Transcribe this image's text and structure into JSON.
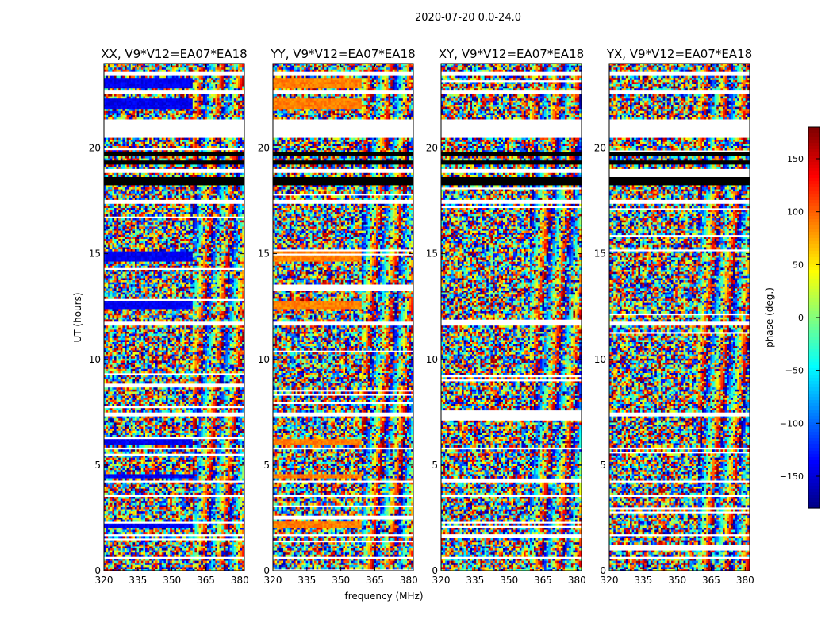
{
  "figure": {
    "suptitle": "2020-07-20 0.0-24.0"
  },
  "chart_data": {
    "type": "heatmap",
    "xlabel": "frequency (MHz)",
    "ylabel": "UT (hours)",
    "xlim": [
      320,
      382
    ],
    "ylim": [
      0,
      24
    ],
    "xticks": [
      320,
      335,
      350,
      365,
      380
    ],
    "yticks": [
      0,
      5,
      10,
      15,
      20
    ],
    "panels": [
      {
        "title": "XX, V9*V12=EA07*EA18",
        "dominant_phase": -140
      },
      {
        "title": "YY, V9*V12=EA07*EA18",
        "dominant_phase": 90
      },
      {
        "title": "XY, V9*V12=EA07*EA18",
        "dominant_phase": null
      },
      {
        "title": "YX, V9*V12=EA07*EA18",
        "dominant_phase": null
      }
    ],
    "coherent_bands_hours": [
      [
        22.8,
        23.3
      ],
      [
        21.9,
        22.3
      ],
      [
        14.6,
        15.1
      ],
      [
        12.4,
        12.8
      ],
      [
        5.9,
        6.2
      ],
      [
        4.4,
        4.6
      ],
      [
        2.0,
        2.3
      ]
    ],
    "blanked_bands_hours": [
      [
        23.4,
        23.6
      ],
      [
        22.5,
        22.7
      ],
      [
        20.5,
        21.4
      ],
      [
        18.8,
        19.0
      ],
      [
        17.4,
        17.6
      ],
      [
        11.6,
        11.8
      ],
      [
        7.3,
        7.5
      ],
      [
        5.7,
        5.8
      ],
      [
        4.2,
        4.3
      ],
      [
        3.5,
        3.6
      ],
      [
        1.6,
        1.7
      ],
      [
        0.6,
        0.7
      ]
    ],
    "flagged_bands_hours": [
      [
        18.2,
        18.6
      ],
      [
        19.2,
        19.4
      ],
      [
        19.6,
        19.8
      ]
    ],
    "colorbar": {
      "label": "phase (deg.)",
      "range": [
        -180,
        180
      ],
      "ticks": [
        -150,
        -100,
        -50,
        0,
        50,
        100,
        150
      ],
      "ticklabels": [
        "−150",
        "−100",
        "−50",
        "0",
        "50",
        "100",
        "150"
      ],
      "colormap": [
        "#00007f",
        "#0000ff",
        "#007fff",
        "#00ffff",
        "#7fff7f",
        "#ffff00",
        "#ff7f00",
        "#ff0000",
        "#7f0000"
      ]
    }
  }
}
